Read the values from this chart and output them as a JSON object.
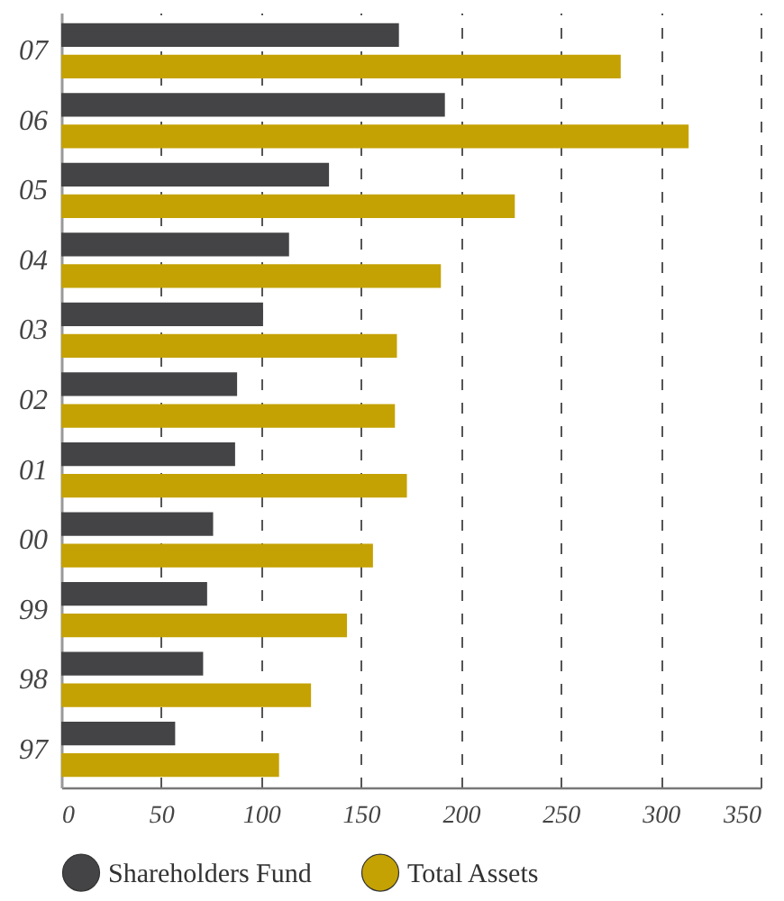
{
  "chart_data": {
    "type": "bar",
    "orientation": "horizontal",
    "categories": [
      "07",
      "06",
      "05",
      "04",
      "03",
      "02",
      "01",
      "00",
      "99",
      "98",
      "97"
    ],
    "series": [
      {
        "name": "Shareholders Fund",
        "color": "#444446",
        "values": [
          169,
          192,
          134,
          114,
          101,
          88,
          87,
          76,
          73,
          71,
          57
        ]
      },
      {
        "name": "Total Assets",
        "color": "#c4a203",
        "values": [
          280,
          314,
          227,
          190,
          168,
          167,
          173,
          156,
          143,
          125,
          109
        ]
      }
    ],
    "xlim": [
      0,
      350
    ],
    "xticks": [
      0,
      50,
      100,
      150,
      200,
      250,
      300,
      350
    ],
    "grid": "x",
    "legend": "bottom"
  }
}
